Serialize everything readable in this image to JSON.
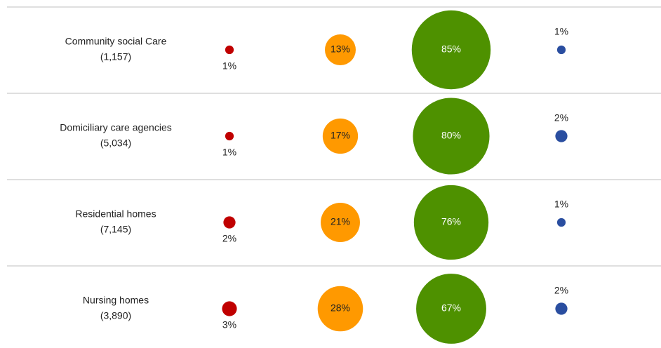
{
  "chart_data": {
    "type": "bubble-table",
    "categories": [
      "Community social Care",
      "Domiciliary care agencies",
      "Residential homes",
      "Nursing homes"
    ],
    "counts": [
      {
        "value": 1157,
        "label": "(1,157)"
      },
      {
        "value": 5034,
        "label": "(5,034)"
      },
      {
        "value": 7145,
        "label": "(7,145)"
      },
      {
        "value": 3890,
        "label": "(3,890)"
      }
    ],
    "series": [
      {
        "color": "#c00000",
        "values": [
          1,
          1,
          2,
          3
        ],
        "value_labels": [
          "1%",
          "1%",
          "2%",
          "3%"
        ],
        "label_position": "below"
      },
      {
        "color": "#ff9900",
        "values": [
          13,
          17,
          21,
          28
        ],
        "value_labels": [
          "13%",
          "17%",
          "21%",
          "28%"
        ],
        "label_position": "inside",
        "label_color": "#222222"
      },
      {
        "color": "#4e9100",
        "values": [
          85,
          80,
          76,
          67
        ],
        "value_labels": [
          "85%",
          "80%",
          "76%",
          "67%"
        ],
        "label_position": "inside",
        "label_color": "#ffffff"
      },
      {
        "color": "#2a4ea0",
        "values": [
          1,
          2,
          1,
          2
        ],
        "value_labels": [
          "1%",
          "2%",
          "1%",
          "2%"
        ],
        "label_position": "above"
      }
    ]
  }
}
